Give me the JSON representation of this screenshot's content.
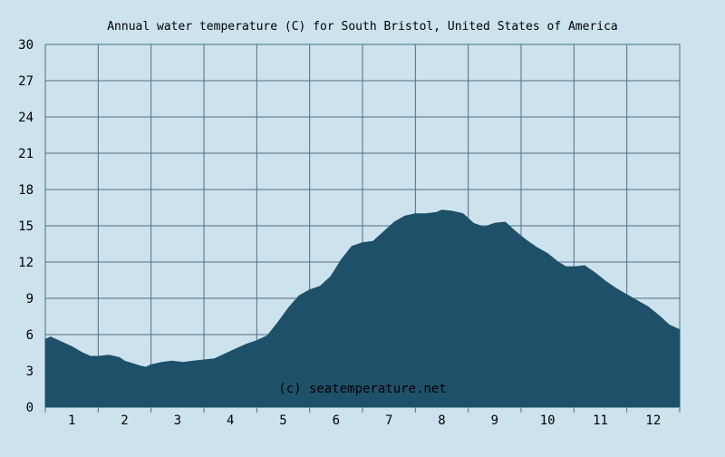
{
  "chart_data": {
    "type": "area",
    "title": "Annual water temperature (C) for South Bristol, United States of America",
    "xlabel": "",
    "ylabel": "",
    "ylim": [
      0,
      30
    ],
    "yticks": [
      0,
      3,
      6,
      9,
      12,
      15,
      18,
      21,
      24,
      27,
      30
    ],
    "xlim": [
      0.5,
      12.5
    ],
    "xticks": [
      1,
      2,
      3,
      4,
      5,
      6,
      7,
      8,
      9,
      10,
      11,
      12
    ],
    "grid": true,
    "watermark": "(c) seatemperature.net",
    "colors": {
      "background": "#cce3ee",
      "plot_background": "#cce3ee",
      "area_fill": "#1f5069",
      "grid": "#4f6d83"
    },
    "series": [
      {
        "x": [
          0.5,
          0.6,
          0.8,
          1.0,
          1.2,
          1.35,
          1.5,
          1.7,
          1.9,
          2.0,
          2.15,
          2.3,
          2.4,
          2.5,
          2.7,
          2.9,
          3.1,
          3.3,
          3.5,
          3.7,
          3.9,
          4.1,
          4.3,
          4.5,
          4.7,
          4.9,
          5.1,
          5.3,
          5.5,
          5.7,
          5.9,
          6.1,
          6.3,
          6.5,
          6.7,
          6.9,
          7.1,
          7.3,
          7.5,
          7.7,
          7.9,
          8.0,
          8.2,
          8.4,
          8.6,
          8.8,
          9.0,
          9.2,
          9.4,
          9.6,
          9.8,
          10.0,
          10.2,
          10.35,
          10.5,
          10.7,
          10.9,
          11.1,
          11.3,
          11.5,
          11.7,
          11.9,
          12.1,
          12.3,
          12.5
        ],
        "values": [
          5.6,
          5.8,
          5.4,
          5.0,
          4.5,
          4.2,
          4.2,
          4.3,
          4.1,
          3.8,
          3.6,
          3.4,
          3.3,
          3.5,
          3.7,
          3.8,
          3.7,
          3.8,
          3.9,
          4.0,
          4.4,
          4.8,
          5.2,
          5.5,
          5.9,
          7.0,
          8.2,
          9.2,
          9.7,
          10.0,
          10.8,
          12.2,
          13.3,
          13.6,
          13.7,
          14.5,
          15.3,
          15.8,
          16.0,
          16.0,
          16.1,
          16.3,
          16.2,
          16.0,
          15.2,
          14.9,
          15.2,
          15.3,
          14.5,
          13.8,
          13.2,
          12.7,
          12.0,
          11.6,
          11.6,
          11.7,
          11.1,
          10.4,
          9.8,
          9.3,
          8.8,
          8.3,
          7.6,
          6.8,
          6.4
        ]
      }
    ]
  }
}
